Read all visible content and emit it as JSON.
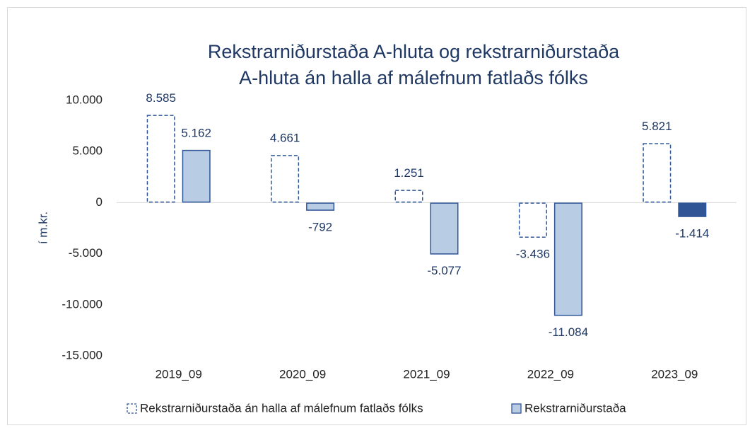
{
  "chart_data": {
    "type": "bar",
    "title": [
      "Rekstrarniðurstaða A-hluta og rekstrarniðurstaða",
      "A-hluta án halla af málefnum fatlaðs fólks"
    ],
    "y_label": "í m.kr.",
    "categories": [
      "2019_09",
      "2020_09",
      "2021_09",
      "2022_09",
      "2023_09"
    ],
    "series": [
      {
        "name": "Rekstrarniðurstaða án halla af málefnum fatlaðs fólks",
        "color": "#2f5597",
        "style": "dashed",
        "values": [
          8585,
          4661,
          1251,
          -3436,
          5821
        ],
        "value_labels": [
          "8.585",
          "4.661",
          "1.251",
          "-3.436",
          "5.821"
        ]
      },
      {
        "name": "Rekstrarniðurstaða",
        "color": "#2f5597",
        "style": "solid",
        "colors": [
          "#b8cce4",
          "#b8cce4",
          "#b8cce4",
          "#b8cce4",
          "#2f5597"
        ],
        "values": [
          5162,
          -792,
          -5077,
          -11084,
          -1414
        ],
        "value_labels": [
          "5.162",
          "-792",
          "-5.077",
          "-11.084",
          "-1.414"
        ]
      }
    ],
    "ylim": [
      -15000,
      10000
    ],
    "yticks": [
      {
        "value": 10000,
        "label": "10.000"
      },
      {
        "value": 5000,
        "label": "5.000"
      },
      0,
      {
        "value": -5000,
        "label": "-5.000"
      },
      {
        "value": -10000,
        "label": "-10.000"
      },
      {
        "value": -15000,
        "label": "-15.000"
      }
    ],
    "grid": false,
    "legend": "bottom"
  }
}
